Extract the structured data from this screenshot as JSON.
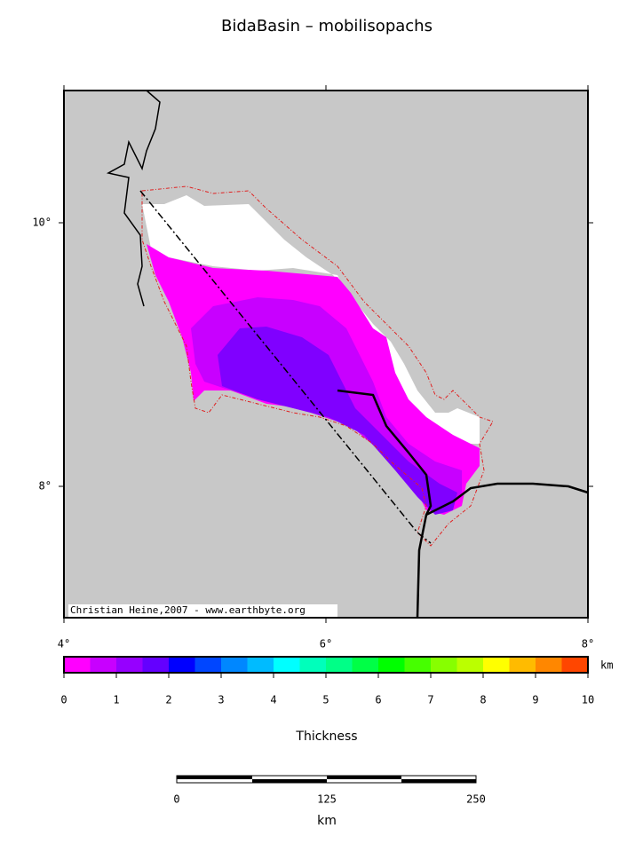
{
  "title": "BidaBasin – mobilisopachs",
  "credit": "Christian Heine,2007 - www.earthbyte.org",
  "map": {
    "lon_labels": [
      "4°",
      "6°",
      "8°"
    ],
    "lat_labels": [
      "10°",
      "8°"
    ]
  },
  "colorbar": {
    "ticks": [
      0,
      1,
      2,
      3,
      4,
      5,
      6,
      7,
      8,
      9,
      10
    ],
    "unit": "km",
    "label": "Thickness",
    "colors": [
      "#ff00ff",
      "#c800ff",
      "#9600ff",
      "#6400ff",
      "#0000ff",
      "#0046ff",
      "#0087ff",
      "#00bbff",
      "#00ffff",
      "#00ffbb",
      "#00ff87",
      "#00ff46",
      "#00ff00",
      "#46ff00",
      "#87ff00",
      "#bbff00",
      "#ffff00",
      "#ffbb00",
      "#ff8700",
      "#ff4600"
    ]
  },
  "scalebar": {
    "ticks": [
      "0",
      "125",
      "250"
    ],
    "unit": "km"
  }
}
